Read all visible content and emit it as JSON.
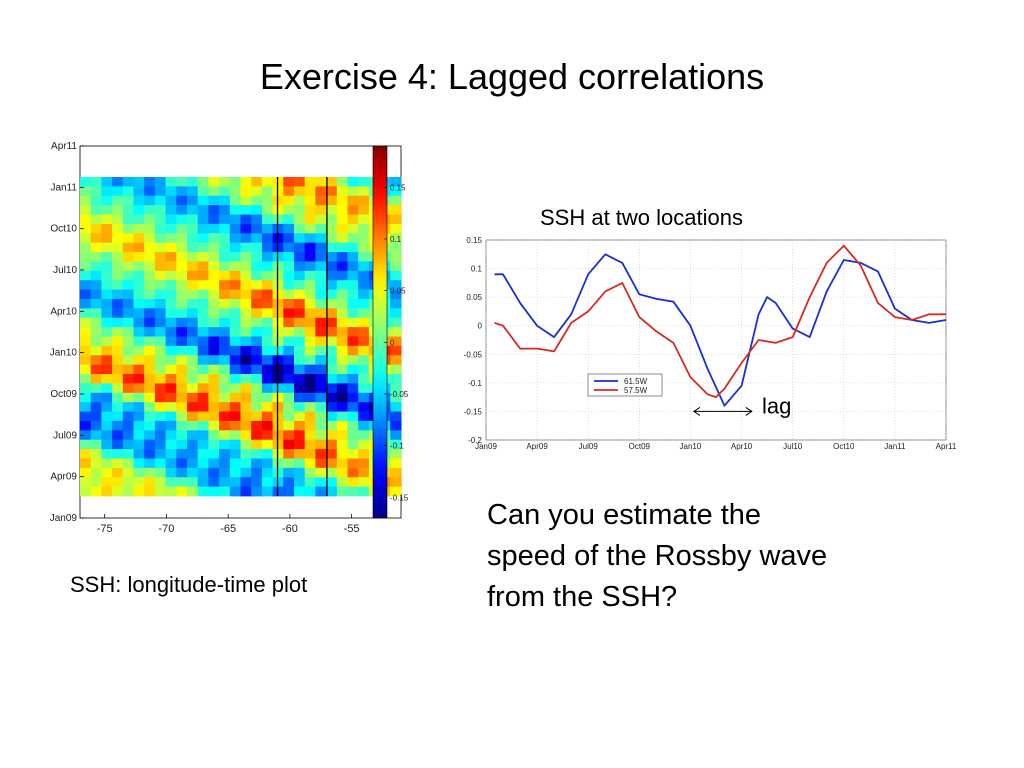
{
  "slide": {
    "title": "Exercise 4: Lagged correlations",
    "hovmoller_caption": "SSH: longitude-time plot",
    "question_lines": [
      "Can you estimate the",
      "speed of the Rossby wave",
      "from the SSH?"
    ],
    "lag_label": "lag"
  },
  "chart_data": [
    {
      "type": "heatmap",
      "title": "",
      "xlabel": "",
      "ylabel": "",
      "x_ticks": [
        -75,
        -70,
        -65,
        -60,
        -55
      ],
      "x_tick_labels": [
        "-75",
        "-70",
        "-65",
        "-60",
        "-55"
      ],
      "xlim": [
        -77,
        -51
      ],
      "y_tick_labels": [
        "Jan09",
        "Apr09",
        "Jul09",
        "Oct09",
        "Jan10",
        "Apr10",
        "Jul10",
        "Oct10",
        "Jan11",
        "Apr11"
      ],
      "ylim": [
        "Jan09",
        "Apr11"
      ],
      "colorbar": {
        "ticks": [
          0.15,
          0.1,
          0.05,
          0,
          -0.05,
          -0.1,
          -0.15
        ],
        "tick_labels": [
          "0.15",
          "0.1",
          "0.05",
          "0",
          "-0.05",
          "-0.1",
          "-0.15"
        ],
        "range": [
          -0.17,
          0.19
        ],
        "colormap": "jet"
      },
      "vertical_lines_longitude": [
        -61,
        -57
      ],
      "grid": false,
      "pattern_note": "SSH anomaly bands propagating westward (diagonal stripes)"
    },
    {
      "type": "line",
      "title": "SSH at two locations",
      "xlabel": "",
      "ylabel": "",
      "x_tick_labels": [
        "Jan09",
        "Apr09",
        "Jul09",
        "Oct09",
        "Jan10",
        "Apr10",
        "Jul10",
        "Oct10",
        "Jan11",
        "Apr11"
      ],
      "y_ticks": [
        0.15,
        0.1,
        0.05,
        0,
        -0.05,
        -0.1,
        -0.15,
        -0.2
      ],
      "y_tick_labels": [
        "0.15",
        "0.1",
        "0.05",
        "0",
        "-0.05",
        "-0.1",
        "-0.15",
        "-0.2"
      ],
      "ylim": [
        -0.2,
        0.15
      ],
      "grid": true,
      "legend_position": "bottom-left",
      "series": [
        {
          "name": "61.5W",
          "color": "#1a2fd0",
          "x": [
            0.5,
            1,
            2,
            3,
            4,
            5,
            6,
            7,
            8,
            9,
            10,
            11,
            12,
            13,
            14,
            15,
            16,
            16.5,
            17,
            18,
            19,
            20,
            21,
            22,
            23,
            24,
            25,
            26,
            27
          ],
          "y": [
            0.09,
            0.09,
            0.04,
            0.0,
            -0.02,
            0.02,
            0.09,
            0.125,
            0.11,
            0.055,
            0.047,
            0.042,
            0.0,
            -0.075,
            -0.14,
            -0.105,
            0.02,
            0.05,
            0.04,
            -0.005,
            -0.02,
            0.06,
            0.115,
            0.11,
            0.095,
            0.03,
            0.01,
            0.005,
            0.01
          ]
        },
        {
          "name": "57.5W",
          "color": "#d62a22",
          "x": [
            0.5,
            1,
            2,
            3,
            4,
            5,
            6,
            7,
            8,
            9,
            10,
            11,
            12,
            13,
            13.5,
            14,
            15,
            16,
            17,
            18,
            19,
            20,
            21,
            22,
            23,
            24,
            25,
            26,
            27
          ],
          "y": [
            0.005,
            0.0,
            -0.04,
            -0.04,
            -0.045,
            0.005,
            0.025,
            0.06,
            0.075,
            0.015,
            -0.01,
            -0.03,
            -0.09,
            -0.12,
            -0.125,
            -0.11,
            -0.065,
            -0.025,
            -0.03,
            -0.02,
            0.05,
            0.11,
            0.14,
            0.105,
            0.04,
            0.015,
            0.01,
            0.02,
            0.02
          ]
        }
      ]
    }
  ]
}
